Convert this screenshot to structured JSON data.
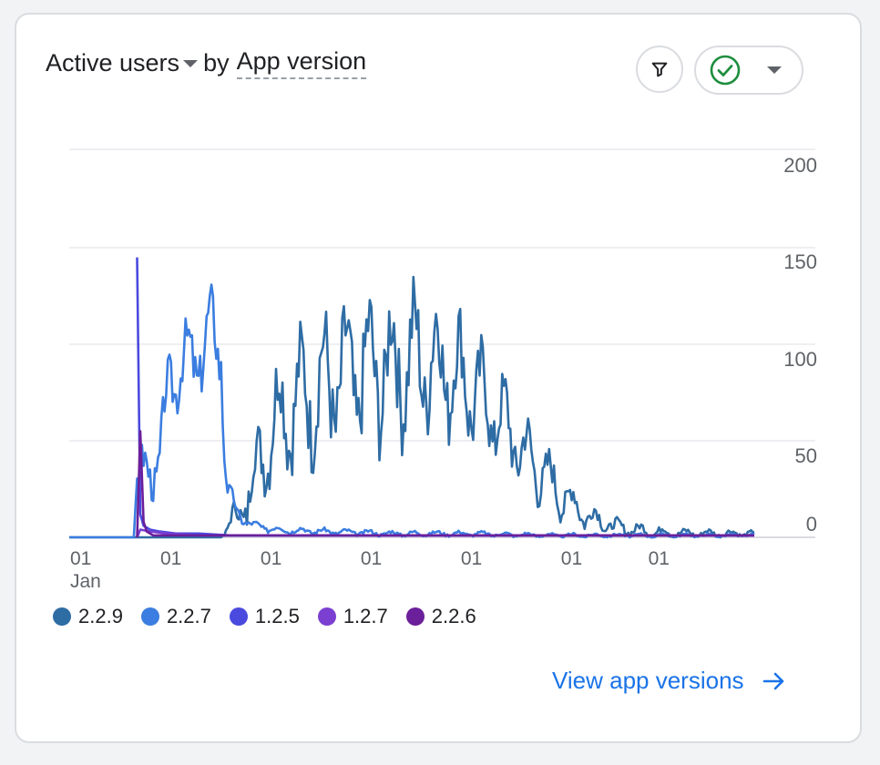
{
  "header": {
    "metric": "Active users",
    "by_text": "by",
    "dimension": "App version"
  },
  "controls": {
    "filter_icon": "filter-icon",
    "compare_icon": "check-circle-icon",
    "dropdown_icon": "chevron-down-icon"
  },
  "chart_data": {
    "type": "line",
    "title": "Active users by App version",
    "y_ticks": [
      "200",
      "150",
      "100",
      "50",
      "0"
    ],
    "ylim": [
      0,
      200
    ],
    "x_ticks": [
      {
        "label": "01",
        "sub": "Jan"
      },
      {
        "label": "01",
        "sub": ""
      },
      {
        "label": "01",
        "sub": ""
      },
      {
        "label": "01",
        "sub": ""
      },
      {
        "label": "01",
        "sub": ""
      },
      {
        "label": "01",
        "sub": ""
      },
      {
        "label": "01",
        "sub": ""
      }
    ],
    "x_tick_days": [
      0,
      31,
      62,
      93,
      124,
      155,
      182
    ],
    "total_days": 212,
    "series": [
      {
        "name": "2.2.9",
        "color": "#2e6ca4",
        "profile": [
          [
            0,
            0
          ],
          [
            47,
            0
          ],
          [
            48,
            2
          ],
          [
            55,
            20
          ],
          [
            60,
            45
          ],
          [
            65,
            65
          ],
          [
            72,
            72
          ],
          [
            78,
            78
          ],
          [
            85,
            82
          ],
          [
            92,
            85
          ],
          [
            100,
            88
          ],
          [
            108,
            92
          ],
          [
            115,
            90
          ],
          [
            122,
            82
          ],
          [
            128,
            70
          ],
          [
            135,
            58
          ],
          [
            140,
            45
          ],
          [
            148,
            30
          ],
          [
            155,
            18
          ],
          [
            160,
            12
          ],
          [
            165,
            8
          ],
          [
            170,
            5
          ],
          [
            180,
            3
          ],
          [
            190,
            2
          ],
          [
            200,
            2
          ],
          [
            212,
            2
          ]
        ],
        "amplitude": [
          [
            0,
            0
          ],
          [
            47,
            0
          ],
          [
            55,
            20
          ],
          [
            65,
            40
          ],
          [
            80,
            48
          ],
          [
            100,
            50
          ],
          [
            115,
            46
          ],
          [
            125,
            38
          ],
          [
            140,
            26
          ],
          [
            150,
            18
          ],
          [
            160,
            10
          ],
          [
            170,
            5
          ],
          [
            190,
            3
          ],
          [
            212,
            2
          ]
        ],
        "seed": 7
      },
      {
        "name": "2.2.7",
        "color": "#3b7de0",
        "profile": [
          [
            0,
            0
          ],
          [
            20,
            0
          ],
          [
            21,
            30
          ],
          [
            25,
            35
          ],
          [
            28,
            42
          ],
          [
            31,
            80
          ],
          [
            35,
            92
          ],
          [
            38,
            88
          ],
          [
            41,
            100
          ],
          [
            44,
            105
          ],
          [
            47,
            100
          ],
          [
            48,
            50
          ],
          [
            49,
            25
          ],
          [
            52,
            12
          ],
          [
            57,
            6
          ],
          [
            65,
            4
          ],
          [
            80,
            3
          ],
          [
            100,
            2
          ],
          [
            120,
            2
          ],
          [
            150,
            1
          ],
          [
            212,
            1
          ]
        ],
        "amplitude": [
          [
            0,
            0
          ],
          [
            20,
            0
          ],
          [
            22,
            18
          ],
          [
            30,
            22
          ],
          [
            40,
            30
          ],
          [
            47,
            28
          ],
          [
            49,
            8
          ],
          [
            55,
            3
          ],
          [
            80,
            2
          ],
          [
            212,
            1
          ]
        ],
        "seed": 3
      },
      {
        "name": "1.2.5",
        "color": "#4a4adf",
        "spikes": [
          [
            21,
            145
          ],
          [
            22,
            12
          ],
          [
            23,
            6
          ],
          [
            25,
            4
          ],
          [
            28,
            3
          ],
          [
            33,
            2
          ],
          [
            40,
            2
          ],
          [
            50,
            1
          ],
          [
            212,
            1
          ]
        ]
      },
      {
        "name": "1.2.7",
        "color": "#7b3fd1",
        "spikes": [
          [
            21,
            0
          ],
          [
            22,
            4
          ],
          [
            25,
            3
          ],
          [
            30,
            2
          ],
          [
            40,
            1
          ],
          [
            212,
            1
          ]
        ]
      },
      {
        "name": "2.2.6",
        "color": "#6b1f9a",
        "spikes": [
          [
            21,
            0
          ],
          [
            22,
            55
          ],
          [
            23,
            8
          ],
          [
            24,
            3
          ],
          [
            26,
            1
          ],
          [
            212,
            1
          ]
        ]
      }
    ]
  },
  "footer": {
    "link_label": "View app versions",
    "link_icon": "arrow-right-icon"
  }
}
